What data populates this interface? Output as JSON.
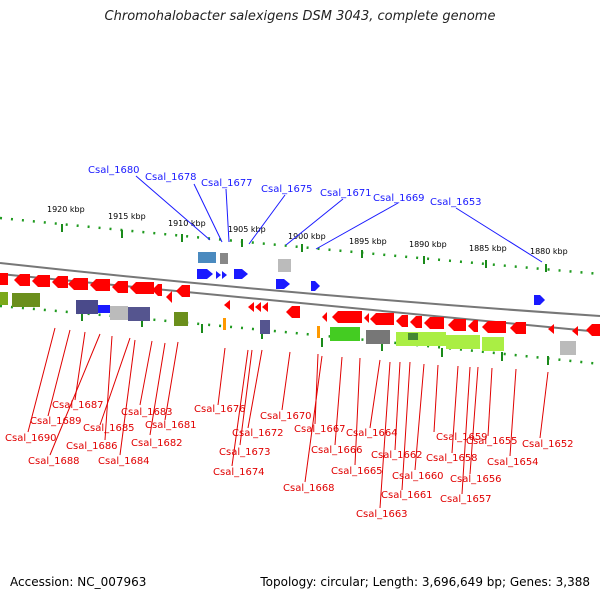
{
  "title": "Chromohalobacter salexigens DSM 3043, complete genome",
  "footer": {
    "accession": "Accession: NC_007963",
    "info": "Topology: circular; Length: 3,696,649 bp; Genes: 3,388"
  },
  "scale_ticks": [
    "1920 kbp",
    "1915 kbp",
    "1910 kbp",
    "1905 kbp",
    "1900 kbp",
    "1895 kbp",
    "1890 kbp",
    "1885 kbp",
    "1880 kbp"
  ],
  "top_labels": [
    "Csal_1680",
    "Csal_1678",
    "Csal_1677",
    "Csal_1675",
    "Csal_1671",
    "Csal_1669",
    "Csal_1653"
  ],
  "bottom_labels": [
    "Csal_1687",
    "Csal_1689",
    "Csal_1690",
    "Csal_1688",
    "Csal_1685",
    "Csal_1686",
    "Csal_1684",
    "Csal_1683",
    "Csal_1681",
    "Csal_1682",
    "Csal_1676",
    "Csal_1672",
    "Csal_1673",
    "Csal_1674",
    "Csal_1670",
    "Csal_1667",
    "Csal_1668",
    "Csal_1666",
    "Csal_1665",
    "Csal_1664",
    "Csal_1662",
    "Csal_1661",
    "Csal_1663",
    "Csal_1660",
    "Csal_1659",
    "Csal_1658",
    "Csal_1656",
    "Csal_1657",
    "Csal_1655",
    "Csal_1654",
    "Csal_1652"
  ],
  "colors": {
    "forward_gene": "#1a1aff",
    "reverse_gene": "#ff0000",
    "label_top": "#1a1aff",
    "label_bottom": "#e00000",
    "tick": "#22aa22",
    "backbone": "#777777"
  }
}
